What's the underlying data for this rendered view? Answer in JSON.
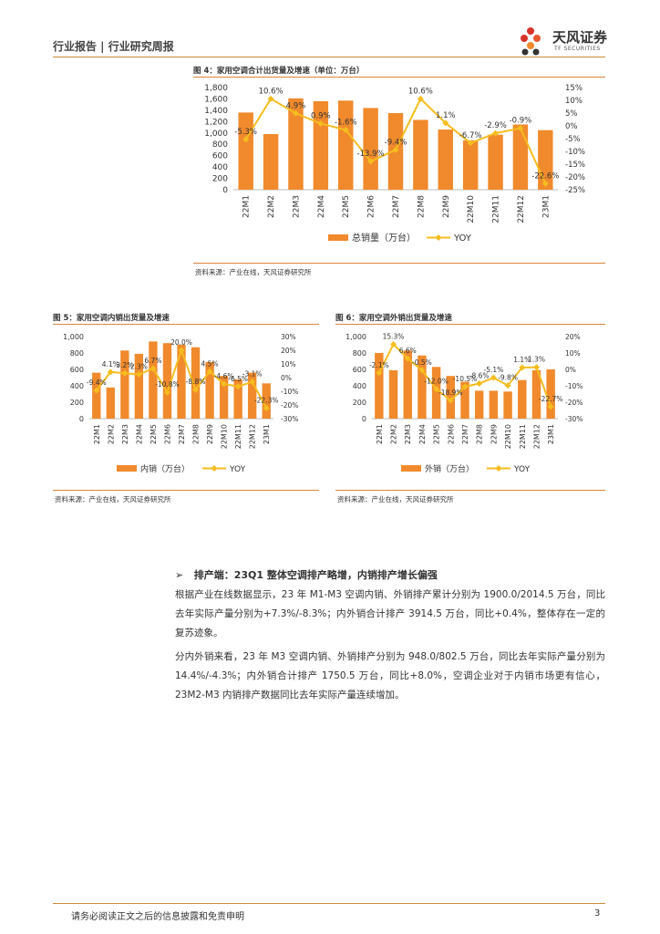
{
  "header": {
    "title": "行业报告 | 行业研究周报"
  },
  "logo": {
    "name": "天风证券",
    "sub": "TF SECURITIES"
  },
  "figures": [
    {
      "title": "图 4：家用空调合计出货量及增速（单位：万台）",
      "source": "资料来源：产业在线，天风证券研究所",
      "legend_bar": "总销量（万台）",
      "legend_line": "YOY"
    },
    {
      "title": "图 5：家用空调内销出货量及增速",
      "source": "资料来源：产业在线，天风证券研究所",
      "legend_bar": "内销（万台）",
      "legend_line": "YOY"
    },
    {
      "title": "图 6：家用空调外销出货量及增速",
      "source": "资料来源：产业在线，天风证券研究所",
      "legend_bar": "外销（万台）",
      "legend_line": "YOY"
    }
  ],
  "chart_data": [
    {
      "type": "bar",
      "title": "图 4：家用空调合计出货量及增速（单位：万台）",
      "categories": [
        "22M1",
        "22M2",
        "22M3",
        "22M4",
        "22M5",
        "22M6",
        "22M7",
        "22M8",
        "22M9",
        "22M10",
        "22M11",
        "22M12",
        "23M1"
      ],
      "series": [
        {
          "name": "总销量（万台）",
          "type": "bar",
          "axis": "left",
          "values": [
            1360,
            980,
            1610,
            1560,
            1570,
            1440,
            1350,
            1230,
            1060,
            870,
            970,
            1150,
            1050
          ]
        },
        {
          "name": "YOY",
          "type": "line",
          "axis": "right",
          "values": [
            -5.3,
            10.6,
            4.9,
            0.9,
            -1.6,
            -13.9,
            -9.4,
            10.6,
            1.1,
            -6.7,
            -2.9,
            -0.9,
            -22.6
          ],
          "labels": [
            "-5.3%",
            "10.6%",
            "4.9%",
            "0.9%",
            "-1.6%",
            "-13.9%",
            "-9.4%",
            "10.6%",
            "1.1%",
            "-6.7%",
            "-2.9%",
            "-0.9%",
            "-22.6%"
          ]
        }
      ],
      "ylim": [
        0,
        1800
      ],
      "yticks": [
        "0",
        "200",
        "400",
        "600",
        "800",
        "1,000",
        "1,200",
        "1,400",
        "1,600",
        "1,800"
      ],
      "y2lim": [
        -25,
        15
      ],
      "y2ticks": [
        "-25%",
        "-20%",
        "-15%",
        "-10%",
        "-5%",
        "0%",
        "5%",
        "10%",
        "15%"
      ]
    },
    {
      "type": "bar",
      "title": "图 5：家用空调内销出货量及增速",
      "categories": [
        "22M1",
        "22M2",
        "22M3",
        "22M4",
        "22M5",
        "22M6",
        "22M7",
        "22M8",
        "22M9",
        "22M10",
        "22M11",
        "22M12",
        "23M1"
      ],
      "series": [
        {
          "name": "内销（万台）",
          "type": "bar",
          "axis": "left",
          "values": [
            560,
            380,
            830,
            790,
            940,
            920,
            900,
            870,
            690,
            520,
            480,
            560,
            430
          ]
        },
        {
          "name": "YOY",
          "type": "line",
          "axis": "right",
          "values": [
            -9.4,
            4.1,
            3.2,
            2.3,
            6.7,
            -10.8,
            20.0,
            -8.8,
            4.5,
            -4.6,
            -6.5,
            -3.1,
            -22.3
          ],
          "labels": [
            "-9.4%",
            "4.1%",
            "3.2%",
            "2.3%",
            "6.7%",
            "-10.8%",
            "20.0%",
            "-8.8%",
            "4.5%",
            "-4.6%",
            "-6.5%",
            "-3.1%",
            "-22.3%"
          ]
        }
      ],
      "ylim": [
        0,
        1000
      ],
      "yticks": [
        "0",
        "200",
        "400",
        "600",
        "800",
        "1,000"
      ],
      "y2lim": [
        -30,
        30
      ],
      "y2ticks": [
        "-30%",
        "-20%",
        "-10%",
        "0%",
        "10%",
        "20%",
        "30%"
      ]
    },
    {
      "type": "bar",
      "title": "图 6：家用空调外销出货量及增速",
      "categories": [
        "22M1",
        "22M2",
        "22M3",
        "22M4",
        "22M5",
        "22M6",
        "22M7",
        "22M8",
        "22M9",
        "22M10",
        "22M11",
        "22M12",
        "23M1"
      ],
      "series": [
        {
          "name": "外销（万台）",
          "type": "bar",
          "axis": "left",
          "values": [
            800,
            590,
            830,
            770,
            630,
            520,
            450,
            340,
            340,
            330,
            470,
            590,
            600
          ]
        },
        {
          "name": "YOY",
          "type": "line",
          "axis": "right",
          "values": [
            -2.1,
            15.3,
            6.6,
            -0.5,
            -12.0,
            -18.9,
            -10.5,
            -8.6,
            -5.1,
            -9.8,
            1.1,
            1.3,
            -22.7
          ],
          "labels": [
            "-2.1%",
            "15.3%",
            "6.6%",
            "-0.5%",
            "-12.0%",
            "-18.9%",
            "-10.5%",
            "-8.6%",
            "-5.1%",
            "-9.8%",
            "1.1%",
            "1.3%",
            "-22.7%"
          ]
        }
      ],
      "ylim": [
        0,
        1000
      ],
      "yticks": [
        "0",
        "200",
        "400",
        "600",
        "800",
        "1,000"
      ],
      "y2lim": [
        -30,
        20
      ],
      "y2ticks": [
        "-30%",
        "-20%",
        "-10%",
        "0%",
        "10%",
        "20%"
      ]
    }
  ],
  "section": {
    "bullet": "➢",
    "title": "排产端：23Q1 整体空调排产略增，内销排产增长偏强",
    "paragraphs": [
      "根据产业在线数据显示，23 年 M1-M3 空调内销、外销排产累计分别为 1900.0/2014.5 万台，同比去年实际产量分别为+7.3%/-8.3%；内外销合计排产 3914.5 万台，同比+0.4%，整体存在一定的复苏迹象。",
      "分内外销来看，23 年 M3 空调内销、外销排产分别为 948.0/802.5 万台，同比去年实际产量分别为 14.4%/-4.3%；内外销合计排产 1750.5 万台，同比+8.0%，空调企业对于内销市场更有信心，23M2-M3 内销排产数据同比去年实际产量连续增加。"
    ]
  },
  "footer": {
    "disclaimer": "请务必阅读正文之后的信息披露和免责申明",
    "page": "3"
  },
  "colors": {
    "bar": "#f08a2c",
    "line": "#f5bd1f",
    "accent": "#c98a3a"
  }
}
